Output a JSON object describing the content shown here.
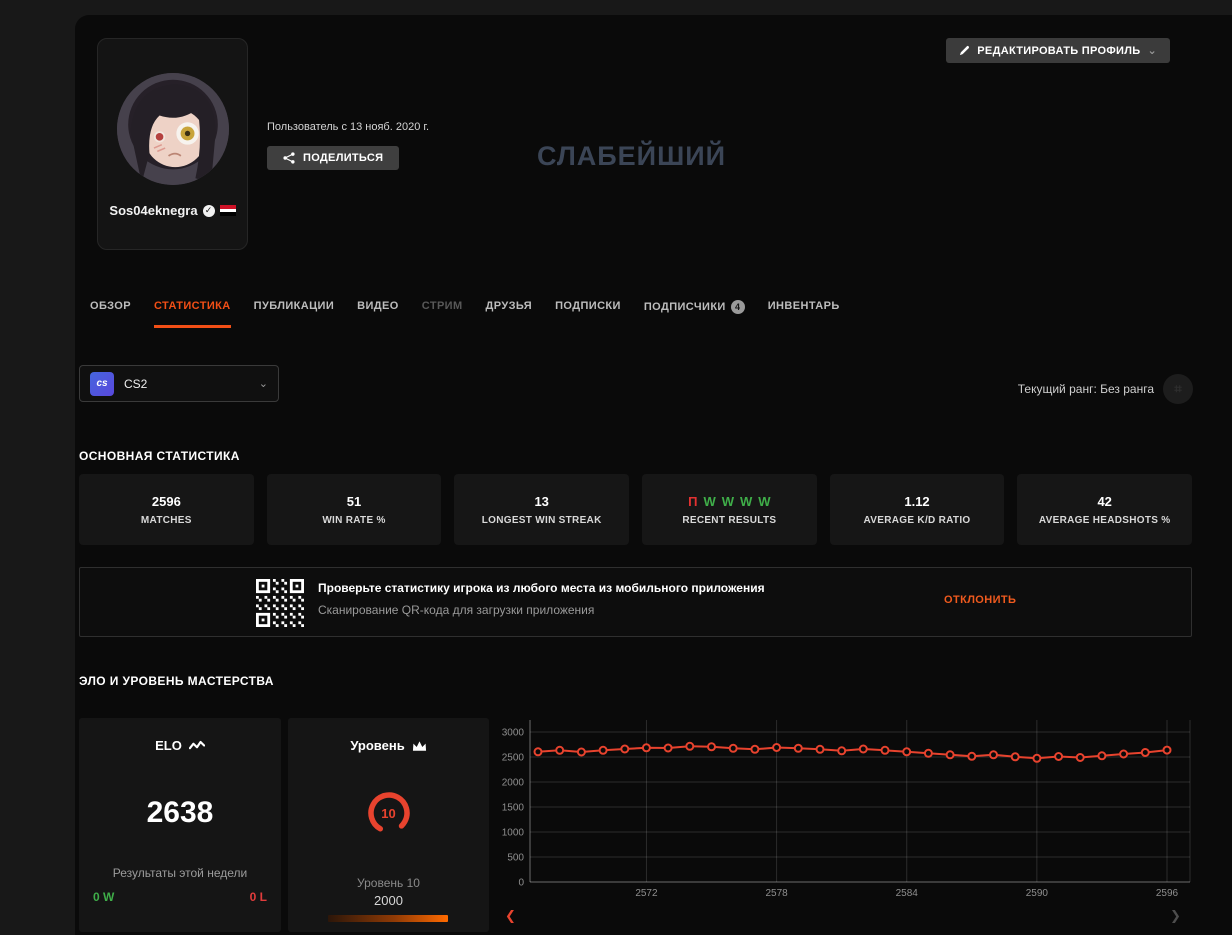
{
  "profile": {
    "username": "Sos04eknegra",
    "member_since": "Пользователь с 13 нояб. 2020 г.",
    "share_label": "ПОДЕЛИТЬСЯ",
    "cover_title": "СЛАБЕЙШИЙ",
    "edit_profile_label": "РЕДАКТИРОВАТЬ ПРОФИЛЬ"
  },
  "tabs": [
    {
      "label": "ОБЗОР",
      "state": "normal"
    },
    {
      "label": "СТАТИСТИКА",
      "state": "active"
    },
    {
      "label": "ПУБЛИКАЦИИ",
      "state": "normal"
    },
    {
      "label": "ВИДЕО",
      "state": "normal"
    },
    {
      "label": "СТРИМ",
      "state": "disabled"
    },
    {
      "label": "ДРУЗЬЯ",
      "state": "normal"
    },
    {
      "label": "ПОДПИСКИ",
      "state": "normal"
    },
    {
      "label": "ПОДПИСЧИКИ",
      "state": "normal",
      "badge": "4"
    },
    {
      "label": "ИНВЕНТАРЬ",
      "state": "normal"
    }
  ],
  "toolbar": {
    "game_label": "CS2",
    "game_icon_text": "cs",
    "current_rank_label": "Текущий ранг: Без ранга"
  },
  "main_stats": {
    "title": "ОСНОВНАЯ СТАТИСТИКА",
    "cards": [
      {
        "value": "2596",
        "label": "MATCHES"
      },
      {
        "value": "51",
        "label": "WIN RATE %"
      },
      {
        "value": "13",
        "label": "LONGEST WIN STREAK"
      },
      {
        "label": "RECENT RESULTS",
        "results": [
          {
            "letter": "П",
            "outcome": "loss"
          },
          {
            "letter": "W",
            "outcome": "win"
          },
          {
            "letter": "W",
            "outcome": "win"
          },
          {
            "letter": "W",
            "outcome": "win"
          },
          {
            "letter": "W",
            "outcome": "win"
          }
        ]
      },
      {
        "value": "1.12",
        "label": "AVERAGE K/D RATIO"
      },
      {
        "value": "42",
        "label": "AVERAGE HEADSHOTS %"
      }
    ]
  },
  "qr_banner": {
    "title": "Проверьте статистику игрока из любого места из мобильного приложения",
    "subtitle": "Сканирование QR-кода для загрузки приложения",
    "dismiss_label": "ОТКЛОНИТЬ"
  },
  "elo_section": {
    "title": "ЭЛО И УРОВЕНЬ МАСТЕРСТВА",
    "elo_card": {
      "title": "ELO",
      "value": "2638",
      "week_results_label": "Результаты этой недели",
      "wins": "0 W",
      "losses": "0 L"
    },
    "level_card": {
      "title": "Уровень",
      "level": "10",
      "level_label": "Уровень 10",
      "elo_threshold": "2000"
    },
    "nav": {
      "prev": "❮",
      "next": "❯"
    }
  },
  "chart_data": {
    "type": "line",
    "title": "",
    "xlabel": "",
    "ylabel": "",
    "legend": "none",
    "grid": true,
    "line_color": "#e8432e",
    "marker": "open-circle",
    "x": [
      2567,
      2568,
      2569,
      2570,
      2571,
      2572,
      2573,
      2574,
      2575,
      2576,
      2577,
      2578,
      2579,
      2580,
      2581,
      2582,
      2583,
      2584,
      2585,
      2586,
      2587,
      2588,
      2589,
      2590,
      2591,
      2592,
      2593,
      2594,
      2595,
      2596
    ],
    "series": [
      {
        "name": "ELO",
        "values": [
          2605,
          2635,
          2600,
          2635,
          2660,
          2685,
          2680,
          2715,
          2705,
          2675,
          2655,
          2690,
          2675,
          2655,
          2625,
          2660,
          2635,
          2605,
          2575,
          2545,
          2515,
          2545,
          2505,
          2475,
          2510,
          2490,
          2525,
          2560,
          2590,
          2638
        ]
      }
    ],
    "xticks": [
      2572,
      2578,
      2584,
      2590,
      2596
    ],
    "yticks": [
      0,
      500,
      1000,
      1500,
      2000,
      2500,
      3000
    ],
    "ylim": [
      0,
      3200
    ]
  },
  "colors": {
    "accent": "#f24f16",
    "win_green": "#3fae49",
    "loss_red": "#e23131",
    "chart_line": "#e8432e",
    "cover_text": "#3b4556"
  }
}
